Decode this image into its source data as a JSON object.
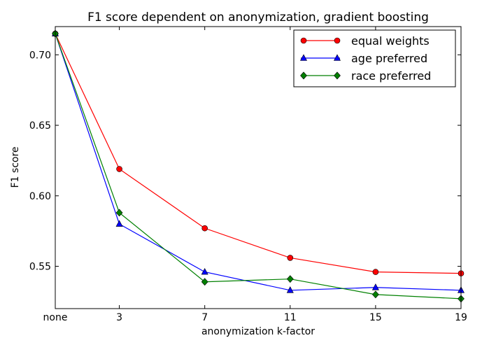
{
  "chart_data": {
    "type": "line",
    "title": "F1 score dependent on anonymization, gradient boosting",
    "xlabel": "anonymization k-factor",
    "ylabel": "F1 score",
    "categories": [
      "none",
      "3",
      "7",
      "11",
      "15",
      "19"
    ],
    "x_positions": [
      0,
      3,
      7,
      11,
      15,
      19
    ],
    "xlim": [
      0,
      19
    ],
    "ylim": [
      0.52,
      0.72
    ],
    "yticks": [
      "0.55",
      "0.60",
      "0.65",
      "0.70"
    ],
    "ytick_values": [
      0.55,
      0.6,
      0.65,
      0.7
    ],
    "grid": false,
    "legend_position": "top-right",
    "series": [
      {
        "name": "equal weights",
        "color": "#ff0000",
        "marker": "circle",
        "values": [
          0.715,
          0.619,
          0.577,
          0.556,
          0.546,
          0.545
        ]
      },
      {
        "name": "age preferred",
        "color": "#0000ff",
        "marker": "triangle",
        "values": [
          0.715,
          0.58,
          0.546,
          0.533,
          0.535,
          0.533
        ]
      },
      {
        "name": "race preferred",
        "color": "#008000",
        "marker": "diamond",
        "values": [
          0.715,
          0.588,
          0.539,
          0.541,
          0.53,
          0.527
        ]
      }
    ]
  }
}
